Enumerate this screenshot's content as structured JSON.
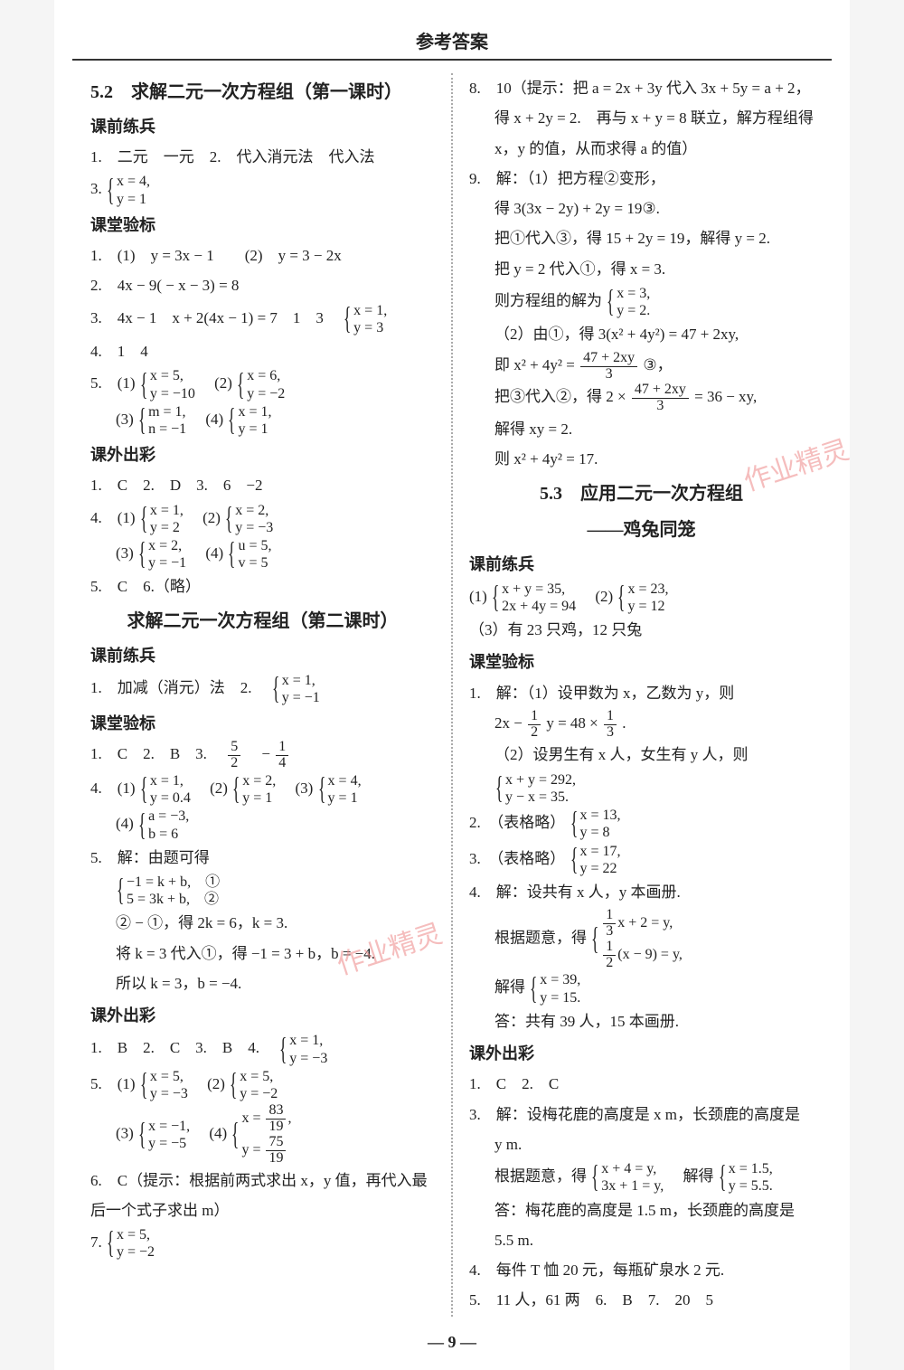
{
  "header": "参考答案",
  "pageNumber": "— 9 —",
  "watermark": "作业精灵",
  "left": {
    "sec1_title": "5.2　求解二元一次方程组（第一课时）",
    "kqlb": "课前练兵",
    "l1": "1.　二元　一元　2.　代入消元法　代入法",
    "l3_label": "3.",
    "l3_sys_a": "x = 4,",
    "l3_sys_b": "y = 1",
    "ktyb": "课堂验标",
    "k1": "1.　(1)　y = 3x − 1　　(2)　y = 3 − 2x",
    "k2": "2.　4x − 9( − x − 3) = 8",
    "k3_pre": "3.　4x − 1　x + 2(4x − 1) = 7　1　3　",
    "k3_sys_a": "x = 1,",
    "k3_sys_b": "y = 3",
    "k4": "4.　1　4",
    "k5_1a": "x = 5,",
    "k5_1b": "y = −10",
    "k5_2a": "x = 6,",
    "k5_2b": "y = −2",
    "k5_3a": "m = 1,",
    "k5_3b": "n = −1",
    "k5_4a": "x = 1,",
    "k5_4b": "y = 1",
    "kwcc": "课外出彩",
    "c1": "1.　C　2.　D　3.　6　−2",
    "c4_1a": "x = 1,",
    "c4_1b": "y = 2",
    "c4_2a": "x = 2,",
    "c4_2b": "y = −3",
    "c4_3a": "x = 2,",
    "c4_3b": "y = −1",
    "c4_4a": "u = 5,",
    "c4_4b": "v = 5",
    "c5": "5.　C　6.（略）",
    "sec2_title": "求解二元一次方程组（第二课时）",
    "kqlb2": "课前练兵",
    "q1_pre": "1.　加减（消元）法　2.　",
    "q1_sys_a": "x = 1,",
    "q1_sys_b": "y = −1",
    "ktyb2": "课堂验标",
    "t1_pre": "1.　C　2.　B　3.　",
    "t1_f1n": "5",
    "t1_f1d": "2",
    "t1_mid": "　−",
    "t1_f2n": "1",
    "t1_f2d": "4",
    "t4_1a": "x = 1,",
    "t4_1b": "y = 0.4",
    "t4_2a": "x = 2,",
    "t4_2b": "y = 1",
    "t4_3a": "x = 4,",
    "t4_3b": "y = 1",
    "t4_4a": "a = −3,",
    "t4_4b": "b = 6",
    "t5_1": "5.　解：由题可得",
    "t5_sys_a": "−1 = k + b,　①",
    "t5_sys_b": "5 = 3k + b,　②",
    "t5_2": "② − ①，得 2k = 6，k = 3.",
    "t5_3": "将 k = 3 代入①，得 −1 = 3 + b，b = −4.",
    "t5_4": "所以 k = 3，b = −4.",
    "kwcc2": "课外出彩",
    "w1_pre": "1.　B　2.　C　3.　B　4.　",
    "w1_sys_a": "x = 1,",
    "w1_sys_b": "y = −3",
    "w5_1a": "x = 5,",
    "w5_1b": "y = −3",
    "w5_2a": "x = 5,",
    "w5_2b": "y = −2",
    "w5_3a": "x = −1,",
    "w5_3b": "y = −5",
    "w5_4_xn": "83",
    "w5_4_xd": "19",
    "w5_4_yn": "75",
    "w5_4_yd": "19",
    "w6": "6.　C（提示：根据前两式求出 x，y 值，再代入最后一个式子求出 m）",
    "w7_label": "7.",
    "w7_sys_a": "x = 5,",
    "w7_sys_b": "y = −2"
  },
  "right": {
    "r8a": "8.　10（提示：把 a = 2x + 3y 代入 3x + 5y = a + 2，",
    "r8b": "得 x + 2y = 2.　再与 x + y = 8 联立，解方程组得",
    "r8c": "x，y 的值，从而求得 a 的值）",
    "r9_1": "9.　解：（1）把方程②变形，",
    "r9_2": "得 3(3x − 2y) + 2y = 19③.",
    "r9_3": "把①代入③，得 15 + 2y = 19，解得 y = 2.",
    "r9_4": "把 y = 2 代入①，得 x = 3.",
    "r9_5_pre": "则方程组的解为",
    "r9_5a": "x = 3,",
    "r9_5b": "y = 2.",
    "r9_6": "（2）由①，得 3(x² + 4y²) = 47 + 2xy,",
    "r9_7_pre": "即 x² + 4y² = ",
    "r9_7_n": "47 + 2xy",
    "r9_7_d": "3",
    "r9_7_post": " ③，",
    "r9_8_pre": "把③代入②，得 2 × ",
    "r9_8_n": "47 + 2xy",
    "r9_8_d": "3",
    "r9_8_post": " = 36 − xy,",
    "r9_9": "解得 xy = 2.",
    "r9_10": "则 x² + 4y² = 17.",
    "sec3_title1": "5.3　应用二元一次方程组",
    "sec3_title2": "——鸡兔同笼",
    "kqlb3": "课前练兵",
    "p1_1a": "x + y = 35,",
    "p1_1b": "2x + 4y = 94",
    "p1_2a": "x = 23,",
    "p1_2b": "y = 12",
    "p1_3": "（3）有 23 只鸡，12 只兔",
    "ktyb3": "课堂验标",
    "b1_1": "1.　解：（1）设甲数为 x，乙数为 y，则",
    "b1_2_pre": "2x − ",
    "b1_2_f1n": "1",
    "b1_2_f1d": "2",
    "b1_2_mid": "y = 48 × ",
    "b1_2_f2n": "1",
    "b1_2_f2d": "3",
    "b1_2_post": ".",
    "b1_3": "（2）设男生有 x 人，女生有 y 人，则",
    "b1_sys_a": "x + y = 292,",
    "b1_sys_b": "y − x = 35.",
    "b2_pre": "2.　（表格略）",
    "b2_a": "x = 13,",
    "b2_b": "y = 8",
    "b3_pre": "3.　（表格略）",
    "b3_a": "x = 17,",
    "b3_b": "y = 22",
    "b4_1": "4.　解：设共有 x 人，y 本画册.",
    "b4_2_pre": "根据题意，得",
    "b4_sys_a_f_n": "1",
    "b4_sys_a_f_d": "3",
    "b4_sys_a_post": "x + 2 = y,",
    "b4_sys_b_f_n": "1",
    "b4_sys_b_f_d": "2",
    "b4_sys_b_post": "(x − 9) = y,",
    "b4_3_pre": "解得",
    "b4_3a": "x = 39,",
    "b4_3b": "y = 15.",
    "b4_4": "答：共有 39 人，15 本画册.",
    "kwcc3": "课外出彩",
    "o1": "1.　C　2.　C",
    "o3_1": "3.　解：设梅花鹿的高度是 x m，长颈鹿的高度是",
    "o3_2": "y m.",
    "o3_3_pre": "根据题意，得",
    "o3_3a": "x + 4 = y,",
    "o3_3b": "3x + 1 = y,",
    "o3_3_mid": "　解得",
    "o3_3c": "x = 1.5,",
    "o3_3d": "y = 5.5.",
    "o3_4": "答：梅花鹿的高度是 1.5 m，长颈鹿的高度是",
    "o3_5": "5.5 m.",
    "o4": "4.　每件 T 恤 20 元，每瓶矿泉水 2 元.",
    "o5": "5.　11 人，61 两　6.　B　7.　20　5"
  }
}
